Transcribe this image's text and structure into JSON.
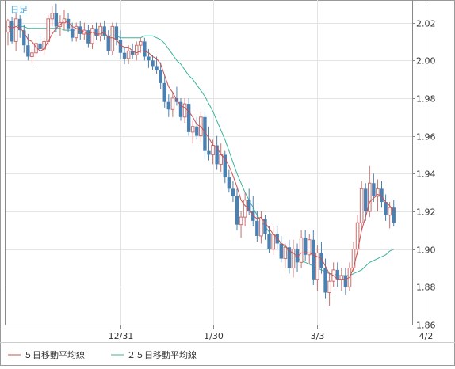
{
  "chart_data": {
    "type": "candlestick",
    "period_label": "日足",
    "yticks": [
      2.02,
      2.0,
      1.98,
      1.96,
      1.94,
      1.92,
      1.9,
      1.88,
      1.86
    ],
    "ylim": [
      1.86,
      2.032
    ],
    "xtick_labels": [
      "12/31",
      "1/30",
      "3/3",
      "4/2"
    ],
    "xtick_index": [
      28,
      51,
      77,
      104
    ],
    "grid": true,
    "colors": {
      "up": "#c87070",
      "down": "#4a80b2",
      "ma5": "#c85050",
      "ma25": "#3cb39a",
      "label_accent": "#4aa6d6",
      "grid": "#e4e4e4",
      "axis": "#888888"
    },
    "legend": [
      {
        "label": "５日移動平均線",
        "color": "#c85050"
      },
      {
        "label": "２５日移動平均線",
        "color": "#3cb39a"
      }
    ],
    "candles": [
      [
        2.015,
        2.022,
        2.008,
        2.021
      ],
      [
        2.021,
        2.023,
        2.009,
        2.01
      ],
      [
        2.01,
        2.025,
        2.005,
        2.022
      ],
      [
        2.022,
        2.024,
        2.012,
        2.016
      ],
      [
        2.016,
        2.019,
        2.004,
        2.008
      ],
      [
        2.008,
        2.014,
        2.0,
        2.002
      ],
      [
        2.002,
        2.006,
        1.998,
        2.004
      ],
      [
        2.004,
        2.011,
        2.002,
        2.009
      ],
      [
        2.009,
        2.013,
        2.004,
        2.006
      ],
      [
        2.006,
        2.012,
        2.003,
        2.01
      ],
      [
        2.01,
        2.024,
        2.008,
        2.022
      ],
      [
        2.022,
        2.029,
        2.018,
        2.025
      ],
      [
        2.025,
        2.03,
        2.015,
        2.018
      ],
      [
        2.018,
        2.024,
        2.013,
        2.02
      ],
      [
        2.02,
        2.027,
        2.016,
        2.022
      ],
      [
        2.022,
        2.025,
        2.015,
        2.017
      ],
      [
        2.017,
        2.02,
        2.01,
        2.012
      ],
      [
        2.012,
        2.02,
        2.01,
        2.018
      ],
      [
        2.018,
        2.021,
        2.011,
        2.014
      ],
      [
        2.014,
        2.02,
        2.011,
        2.016
      ],
      [
        2.016,
        2.019,
        2.007,
        2.009
      ],
      [
        2.009,
        2.019,
        2.006,
        2.017
      ],
      [
        2.017,
        2.02,
        2.011,
        2.013
      ],
      [
        2.013,
        2.02,
        2.01,
        2.018
      ],
      [
        2.018,
        2.021,
        2.011,
        2.013
      ],
      [
        2.013,
        2.016,
        2.003,
        2.005
      ],
      [
        2.005,
        2.02,
        2.003,
        2.018
      ],
      [
        2.018,
        2.02,
        2.008,
        2.011
      ],
      [
        2.011,
        2.016,
        2.001,
        2.004
      ],
      [
        2.004,
        2.007,
        1.998,
        2.001
      ],
      [
        2.001,
        2.008,
        1.998,
        2.005
      ],
      [
        2.005,
        2.009,
        2.001,
        2.003
      ],
      [
        2.003,
        2.01,
        2.0,
        2.008
      ],
      [
        2.008,
        2.012,
        2.004,
        2.01
      ],
      [
        2.01,
        2.012,
        2.0,
        2.002
      ],
      [
        2.002,
        2.006,
        1.996,
        2.0
      ],
      [
        2.0,
        2.003,
        1.995,
        1.997
      ],
      [
        1.997,
        2.002,
        1.993,
        1.995
      ],
      [
        1.995,
        1.999,
        1.985,
        1.988
      ],
      [
        1.988,
        1.992,
        1.975,
        1.978
      ],
      [
        1.978,
        1.982,
        1.97,
        1.974
      ],
      [
        1.974,
        1.983,
        1.97,
        1.98
      ],
      [
        1.98,
        1.986,
        1.976,
        1.978
      ],
      [
        1.978,
        1.98,
        1.968,
        1.97
      ],
      [
        1.97,
        1.98,
        1.967,
        1.977
      ],
      [
        1.977,
        1.98,
        1.96,
        1.962
      ],
      [
        1.962,
        1.968,
        1.956,
        1.965
      ],
      [
        1.965,
        1.97,
        1.958,
        1.96
      ],
      [
        1.96,
        1.973,
        1.957,
        1.97
      ],
      [
        1.97,
        1.973,
        1.948,
        1.952
      ],
      [
        1.952,
        1.965,
        1.947,
        1.95
      ],
      [
        1.95,
        1.958,
        1.945,
        1.955
      ],
      [
        1.955,
        1.96,
        1.942,
        1.945
      ],
      [
        1.945,
        1.956,
        1.941,
        1.95
      ],
      [
        1.95,
        1.952,
        1.935,
        1.938
      ],
      [
        1.938,
        1.942,
        1.93,
        1.932
      ],
      [
        1.932,
        1.936,
        1.925,
        1.928
      ],
      [
        1.928,
        1.932,
        1.91,
        1.913
      ],
      [
        1.913,
        1.92,
        1.906,
        1.917
      ],
      [
        1.917,
        1.93,
        1.912,
        1.926
      ],
      [
        1.926,
        1.932,
        1.918,
        1.92
      ],
      [
        1.92,
        1.928,
        1.912,
        1.915
      ],
      [
        1.915,
        1.92,
        1.904,
        1.907
      ],
      [
        1.907,
        1.92,
        1.903,
        1.916
      ],
      [
        1.916,
        1.918,
        1.905,
        1.908
      ],
      [
        1.908,
        1.912,
        1.898,
        1.9
      ],
      [
        1.9,
        1.912,
        1.897,
        1.908
      ],
      [
        1.908,
        1.912,
        1.9,
        1.903
      ],
      [
        1.903,
        1.907,
        1.893,
        1.895
      ],
      [
        1.895,
        1.903,
        1.89,
        1.901
      ],
      [
        1.901,
        1.905,
        1.887,
        1.89
      ],
      [
        1.89,
        1.905,
        1.885,
        1.9
      ],
      [
        1.9,
        1.903,
        1.888,
        1.893
      ],
      [
        1.893,
        1.91,
        1.89,
        1.906
      ],
      [
        1.906,
        1.91,
        1.894,
        1.897
      ],
      [
        1.897,
        1.908,
        1.892,
        1.905
      ],
      [
        1.905,
        1.91,
        1.881,
        1.884
      ],
      [
        1.884,
        1.902,
        1.878,
        1.898
      ],
      [
        1.898,
        1.904,
        1.887,
        1.89
      ],
      [
        1.89,
        1.895,
        1.874,
        1.877
      ],
      [
        1.877,
        1.887,
        1.87,
        1.883
      ],
      [
        1.883,
        1.893,
        1.88,
        1.889
      ],
      [
        1.889,
        1.893,
        1.88,
        1.884
      ],
      [
        1.884,
        1.89,
        1.878,
        1.886
      ],
      [
        1.886,
        1.89,
        1.876,
        1.88
      ],
      [
        1.88,
        1.893,
        1.878,
        1.89
      ],
      [
        1.89,
        1.904,
        1.888,
        1.9
      ],
      [
        1.9,
        1.918,
        1.897,
        1.914
      ],
      [
        1.914,
        1.936,
        1.91,
        1.932
      ],
      [
        1.932,
        1.935,
        1.915,
        1.92
      ],
      [
        1.92,
        1.944,
        1.917,
        1.935
      ],
      [
        1.935,
        1.94,
        1.925,
        1.928
      ],
      [
        1.928,
        1.937,
        1.92,
        1.932
      ],
      [
        1.932,
        1.936,
        1.922,
        1.925
      ],
      [
        1.925,
        1.929,
        1.915,
        1.918
      ],
      [
        1.918,
        1.925,
        1.911,
        1.922
      ],
      [
        1.922,
        1.926,
        1.912,
        1.914
      ]
    ],
    "ma5": [
      2.018,
      2.017,
      2.018,
      2.017,
      2.015,
      2.011,
      2.01,
      2.007,
      2.005,
      2.006,
      2.01,
      2.014,
      2.017,
      2.019,
      2.021,
      2.02,
      2.018,
      2.017,
      2.016,
      2.015,
      2.014,
      2.015,
      2.014,
      2.014,
      2.015,
      2.012,
      2.012,
      2.011,
      2.008,
      2.007,
      2.007,
      2.005,
      2.004,
      2.005,
      2.005,
      2.004,
      2.002,
      2.001,
      1.998,
      1.992,
      1.986,
      1.983,
      1.979,
      1.976,
      1.975,
      1.973,
      1.97,
      1.966,
      1.965,
      1.962,
      1.959,
      1.955,
      1.954,
      1.95,
      1.948,
      1.944,
      1.939,
      1.933,
      1.926,
      1.923,
      1.921,
      1.918,
      1.916,
      1.917,
      1.914,
      1.911,
      1.908,
      1.906,
      1.903,
      1.902,
      1.899,
      1.898,
      1.896,
      1.898,
      1.898,
      1.898,
      1.897,
      1.896,
      1.895,
      1.891,
      1.887,
      1.886,
      1.884,
      1.884,
      1.884,
      1.885,
      1.89,
      1.899,
      1.91,
      1.917,
      1.925,
      1.927,
      1.929,
      1.928,
      1.925,
      1.923,
      1.92
    ],
    "ma25": [
      2.02,
      2.019,
      2.019,
      2.018,
      2.018,
      2.017,
      2.017,
      2.017,
      2.017,
      2.017,
      2.017,
      2.017,
      2.017,
      2.017,
      2.016,
      2.016,
      2.016,
      2.016,
      2.015,
      2.015,
      2.014,
      2.014,
      2.014,
      2.013,
      2.013,
      2.013,
      2.013,
      2.013,
      2.012,
      2.012,
      2.012,
      2.012,
      2.012,
      2.012,
      2.013,
      2.013,
      2.013,
      2.012,
      2.011,
      2.009,
      2.006,
      2.003,
      2.0,
      1.998,
      1.995,
      1.992,
      1.99,
      1.987,
      1.984,
      1.981,
      1.977,
      1.973,
      1.968,
      1.963,
      1.958,
      1.952,
      1.946,
      1.94,
      1.935,
      1.93,
      1.926,
      1.922,
      1.918,
      1.915,
      1.912,
      1.909,
      1.907,
      1.905,
      1.903,
      1.901,
      1.899,
      1.897,
      1.895,
      1.894,
      1.893,
      1.892,
      1.891,
      1.89,
      1.889,
      1.888,
      1.887,
      1.887,
      1.886,
      1.886,
      1.886,
      1.886,
      1.887,
      1.888,
      1.889,
      1.891,
      1.893,
      1.894,
      1.895,
      1.896,
      1.897,
      1.899,
      1.9
    ]
  }
}
